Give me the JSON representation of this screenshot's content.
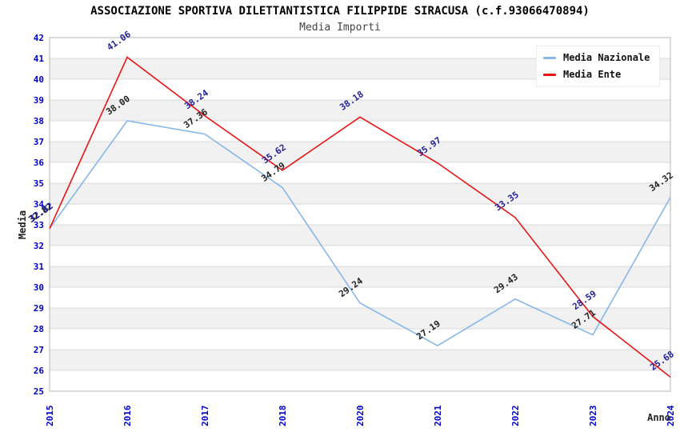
{
  "chart_data": {
    "type": "line",
    "title": "ASSOCIAZIONE SPORTIVA DILETTANTISTICA FILIPPIDE SIRACUSA (c.f.93066470894)",
    "subtitle": "Media Importi",
    "xlabel": "Anno",
    "ylabel": "Media",
    "categories": [
      "2015",
      "2016",
      "2017",
      "2018",
      "2020",
      "2021",
      "2022",
      "2023",
      "2024"
    ],
    "ylim": [
      25,
      42
    ],
    "ytick_step": 1,
    "grid": "horizontal",
    "alternating_bands": true,
    "legend_position": "top-right",
    "tick_color": "#0000cc",
    "band_color": "#f1f1f1",
    "grid_color": "#d9d9d9",
    "border_color": "#b5b5b5",
    "series": [
      {
        "name": "Media Nazionale",
        "color": "#85b7e8",
        "label_color": "#222222",
        "values": [
          32.82,
          38.0,
          37.36,
          34.79,
          29.24,
          27.19,
          29.43,
          27.71,
          34.32
        ]
      },
      {
        "name": "Media Ente",
        "color": "#e81414",
        "label_color": "#22229a",
        "values": [
          32.82,
          41.06,
          38.24,
          35.62,
          38.18,
          35.97,
          33.35,
          28.59,
          25.68
        ]
      }
    ]
  }
}
